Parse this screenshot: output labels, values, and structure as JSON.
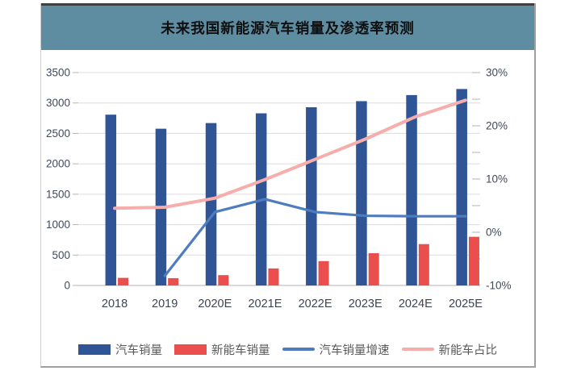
{
  "chart": {
    "title": "未来我国新能源汽车销量及渗透率预测"
  },
  "chart_data": {
    "type": "combo",
    "title": "未来我国新能源汽车销量及渗透率预测",
    "categories": [
      "2018",
      "2019",
      "2020E",
      "2021E",
      "2022E",
      "2023E",
      "2024E",
      "2025E"
    ],
    "series": [
      {
        "id": "auto-sales",
        "name": "汽车销量",
        "type": "bar",
        "axis": "left",
        "color": "#2F5597",
        "values": [
          2808,
          2577,
          2670,
          2830,
          2930,
          3030,
          3130,
          3230
        ]
      },
      {
        "id": "nev-sales",
        "name": "新能车销量",
        "type": "bar",
        "axis": "left",
        "color": "#EA4F4D",
        "values": [
          125,
          120,
          170,
          280,
          400,
          530,
          680,
          800
        ]
      },
      {
        "id": "auto-sales-growth",
        "name": "汽车销量增速",
        "type": "line",
        "axis": "right",
        "color": "#4E7DBF",
        "stroke_width": 3.2,
        "values": [
          null,
          -8.2,
          3.8,
          6.2,
          3.8,
          3.1,
          3.0,
          3.0
        ]
      },
      {
        "id": "nev-share",
        "name": "新能车占比",
        "type": "line",
        "axis": "right",
        "color": "#F5AEAC",
        "stroke_width": 4,
        "values": [
          4.5,
          4.7,
          6.4,
          9.9,
          13.7,
          17.5,
          21.7,
          24.8
        ]
      }
    ],
    "left_axis": {
      "min": 0,
      "max": 3500,
      "step": 500,
      "tick_labels": [
        "0",
        "500",
        "1000",
        "1500",
        "2000",
        "2500",
        "3000",
        "3500"
      ]
    },
    "right_axis": {
      "min": -10,
      "max": 30,
      "major_step": 10,
      "minor_step": 5,
      "tick_labels": [
        "-10%",
        "0%",
        "10%",
        "20%",
        "30%"
      ]
    },
    "grid": true,
    "legend_position": "bottom"
  },
  "colors": {
    "banner_background": "#5E8CA1",
    "gridline": "#dcdcdc",
    "axis_line": "#b3b3b3",
    "bar_blue": "#2F5597",
    "bar_red": "#EA4F4D",
    "line_blue": "#4E7DBF",
    "line_pink": "#F5AEAC"
  }
}
